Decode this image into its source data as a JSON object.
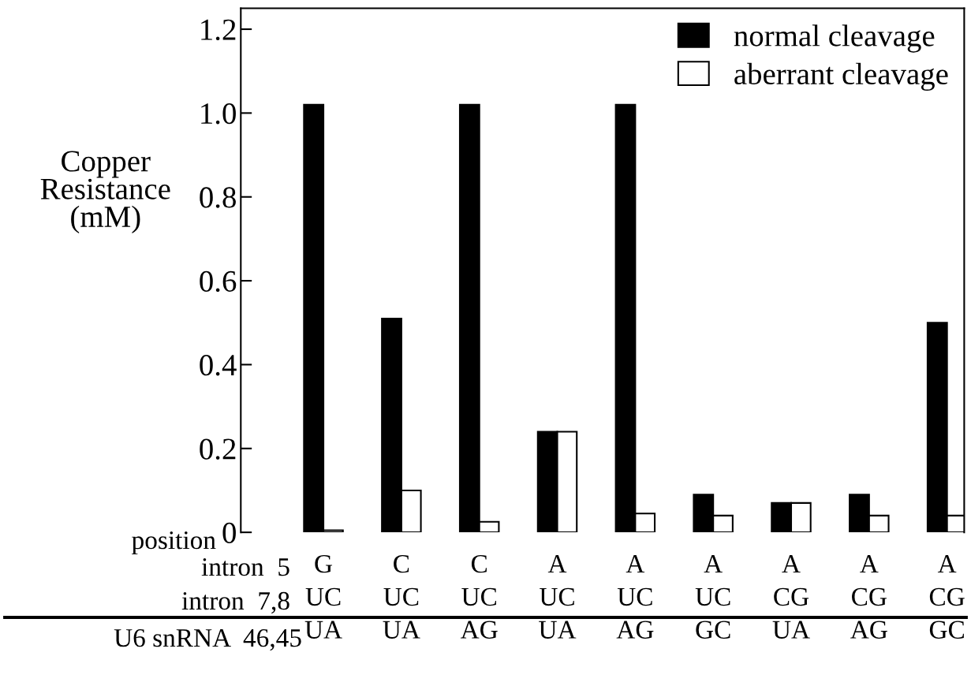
{
  "chart_data": {
    "type": "bar",
    "ylabel": "Copper\nResistance\n(mM)",
    "categories": [
      "G\nUC\nUA",
      "C\nUC\nUA",
      "C\nUC\nAG",
      "A\nUC\nUA",
      "A\nUC\nAG",
      "A\nUC\nGC",
      "A\nCG\nUA",
      "A\nCG\nAG",
      "A\nCG\nGC"
    ],
    "series": [
      {
        "name": "normal cleavage",
        "color": "#000000",
        "values": [
          1.02,
          0.51,
          1.02,
          0.24,
          1.02,
          0.09,
          0.07,
          0.09,
          0.5
        ]
      },
      {
        "name": "aberrant cleavage",
        "color": "#ffffff",
        "values": [
          0.005,
          0.1,
          0.025,
          0.24,
          0.045,
          0.04,
          0.07,
          0.04,
          0.04
        ]
      }
    ],
    "ylim": [
      0,
      1.25
    ],
    "yticks": [
      {
        "value": 0,
        "label": "0"
      },
      0.2,
      0.4,
      0.6,
      0.8,
      {
        "value": 1.0,
        "label": "1.0"
      },
      1.2
    ],
    "legend": "top right",
    "grid": false,
    "annotations": [
      "position",
      "intron  5",
      "intron  7,8",
      "U6 snRNA  46,45"
    ]
  }
}
